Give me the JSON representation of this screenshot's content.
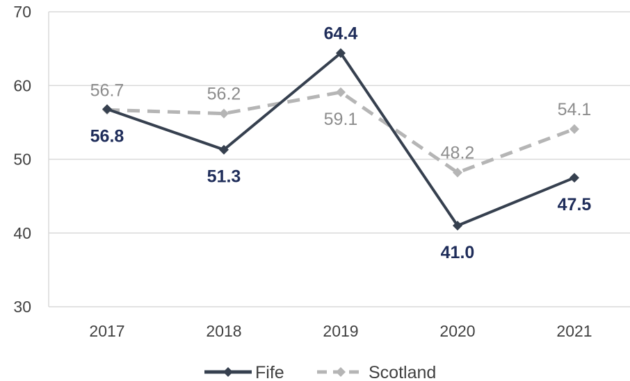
{
  "chart_data": {
    "type": "line",
    "title": "",
    "xlabel": "",
    "ylabel": "",
    "categories": [
      "2017",
      "2018",
      "2019",
      "2020",
      "2021"
    ],
    "ylim": [
      30,
      70
    ],
    "yticks": [
      "30",
      "40",
      "50",
      "60",
      "70"
    ],
    "grid": true,
    "legend_position": "bottom",
    "series": [
      {
        "name": "Fife",
        "values": [
          56.8,
          51.3,
          64.4,
          41.0,
          47.5
        ],
        "labels": [
          "56.8",
          "51.3",
          "64.4",
          "41.0",
          "47.5"
        ],
        "color": "#36404f",
        "label_color": "#1f2d5a",
        "style": "solid",
        "marker": "diamond"
      },
      {
        "name": "Scotland",
        "values": [
          56.7,
          56.2,
          59.1,
          48.2,
          54.1
        ],
        "labels": [
          "56.7",
          "56.2",
          "59.1",
          "48.2",
          "54.1"
        ],
        "color": "#b5b5b5",
        "label_color": "#8c8c8c",
        "style": "dashed",
        "marker": "diamond"
      }
    ]
  }
}
